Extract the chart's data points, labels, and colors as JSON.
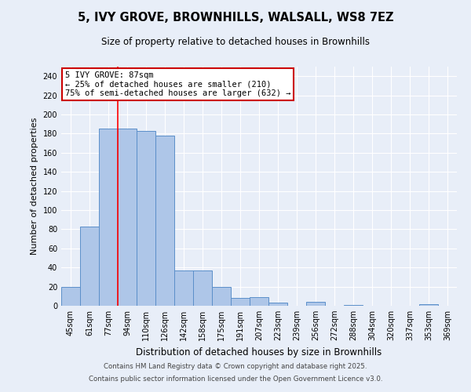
{
  "title": "5, IVY GROVE, BROWNHILLS, WALSALL, WS8 7EZ",
  "subtitle": "Size of property relative to detached houses in Brownhills",
  "xlabel": "Distribution of detached houses by size in Brownhills",
  "ylabel": "Number of detached properties",
  "categories": [
    "45sqm",
    "61sqm",
    "77sqm",
    "94sqm",
    "110sqm",
    "126sqm",
    "142sqm",
    "158sqm",
    "175sqm",
    "191sqm",
    "207sqm",
    "223sqm",
    "239sqm",
    "256sqm",
    "272sqm",
    "288sqm",
    "304sqm",
    "320sqm",
    "337sqm",
    "353sqm",
    "369sqm"
  ],
  "values": [
    20,
    83,
    185,
    185,
    183,
    178,
    37,
    37,
    20,
    8,
    9,
    3,
    0,
    4,
    0,
    1,
    0,
    0,
    0,
    2,
    0
  ],
  "bar_color": "#aec6e8",
  "bar_edge_color": "#5b8fc9",
  "background_color": "#e8eef8",
  "annotation_text": "5 IVY GROVE: 87sqm\n← 25% of detached houses are smaller (210)\n75% of semi-detached houses are larger (632) →",
  "annotation_box_color": "#ffffff",
  "annotation_box_edge": "#cc0000",
  "ylim": [
    0,
    250
  ],
  "yticks": [
    0,
    20,
    40,
    60,
    80,
    100,
    120,
    140,
    160,
    180,
    200,
    220,
    240
  ],
  "footer_line1": "Contains HM Land Registry data © Crown copyright and database right 2025.",
  "footer_line2": "Contains public sector information licensed under the Open Government Licence v3.0."
}
